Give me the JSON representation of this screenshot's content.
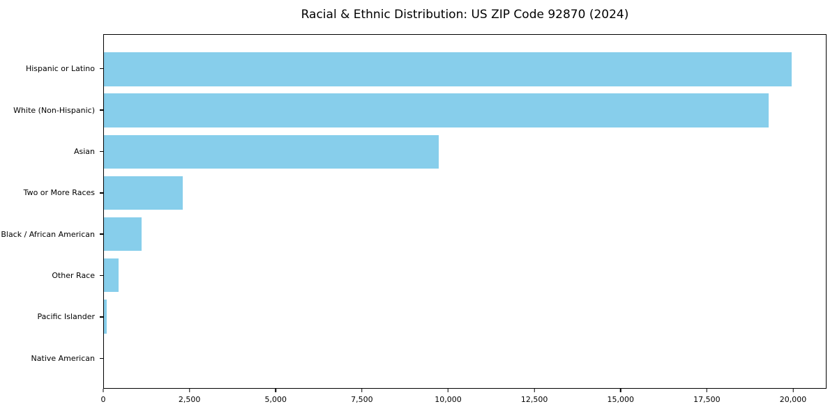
{
  "title": "Racial & Ethnic Distribution: US ZIP Code 92870 (2024)",
  "chart_data": {
    "type": "bar",
    "orientation": "horizontal",
    "title": "Racial & Ethnic Distribution: US ZIP Code 92870 (2024)",
    "xlabel": "",
    "ylabel": "",
    "categories": [
      "Hispanic or Latino",
      "White (Non-Hispanic)",
      "Asian",
      "Two or More Races",
      "Black / African American",
      "Other Race",
      "Pacific Islander",
      "Native American"
    ],
    "values": [
      19970,
      19310,
      9720,
      2290,
      1090,
      420,
      80,
      0
    ],
    "xlim": [
      0,
      20970
    ],
    "x_ticks": [
      0,
      2500,
      5000,
      7500,
      10000,
      12500,
      15000,
      17500,
      20000
    ],
    "x_tick_labels": [
      "0",
      "2,500",
      "5,000",
      "7,500",
      "10,000",
      "12,500",
      "15,000",
      "17,500",
      "20,000"
    ],
    "grid": false,
    "legend": false,
    "bar_color": "#87CEEB",
    "axis_color": "#000000",
    "background_color": "#ffffff"
  }
}
